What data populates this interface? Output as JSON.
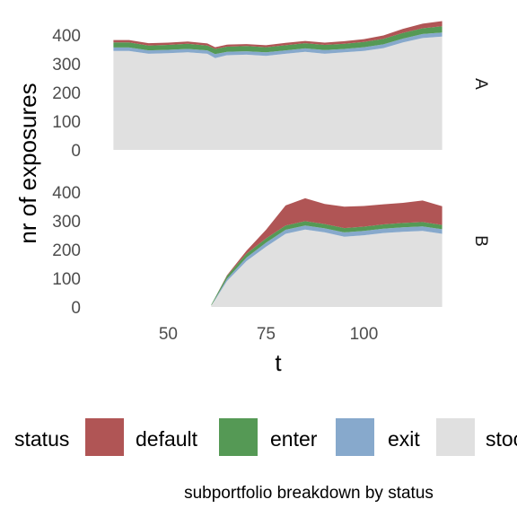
{
  "chart_data": {
    "type": "area",
    "stacked": true,
    "xlabel": "t",
    "ylabel": "nr of exposures",
    "caption": "subportfolio breakdown by status",
    "xlim": [
      35,
      121
    ],
    "x_ticks": [
      50,
      75,
      100
    ],
    "y_ticks": [
      0,
      100,
      200,
      300,
      400
    ],
    "grid": false,
    "legend": {
      "title": "status",
      "position": "bottom",
      "entries": [
        "default",
        "enter",
        "exit",
        "stock"
      ]
    },
    "colors": {
      "default": "#b05555",
      "enter": "#559955",
      "exit": "#87a9cc",
      "stock": "#e0e0e0"
    },
    "panels": [
      {
        "strip": "A",
        "ylim": [
          0,
          460
        ],
        "x": [
          36,
          40,
          45,
          50,
          55,
          60,
          62,
          65,
          70,
          75,
          80,
          85,
          90,
          95,
          100,
          105,
          110,
          115,
          120
        ],
        "stock": [
          345,
          345,
          335,
          337,
          340,
          335,
          320,
          330,
          332,
          328,
          335,
          342,
          335,
          340,
          345,
          355,
          375,
          390,
          395
        ],
        "exit": [
          12,
          12,
          12,
          12,
          12,
          12,
          14,
          12,
          12,
          12,
          12,
          12,
          13,
          12,
          13,
          13,
          13,
          14,
          14
        ],
        "enter": [
          18,
          18,
          17,
          17,
          18,
          17,
          18,
          18,
          18,
          18,
          18,
          18,
          18,
          18,
          18,
          19,
          20,
          20,
          22
        ],
        "default": [
          8,
          8,
          8,
          8,
          8,
          7,
          6,
          7,
          7,
          7,
          8,
          8,
          8,
          9,
          10,
          12,
          14,
          16,
          18
        ]
      },
      {
        "strip": "B",
        "ylim": [
          0,
          460
        ],
        "x": [
          61,
          62,
          65,
          70,
          75,
          80,
          85,
          90,
          95,
          100,
          105,
          110,
          115,
          120
        ],
        "stock": [
          5,
          25,
          90,
          160,
          210,
          255,
          270,
          260,
          245,
          250,
          258,
          262,
          265,
          255
        ],
        "exit": [
          0,
          3,
          8,
          12,
          14,
          14,
          14,
          14,
          15,
          15,
          15,
          16,
          16,
          16
        ],
        "enter": [
          3,
          5,
          10,
          14,
          15,
          15,
          15,
          15,
          15,
          15,
          15,
          15,
          15,
          15
        ],
        "default": [
          0,
          0,
          2,
          10,
          30,
          70,
          80,
          70,
          75,
          72,
          70,
          70,
          75,
          65
        ]
      }
    ]
  }
}
